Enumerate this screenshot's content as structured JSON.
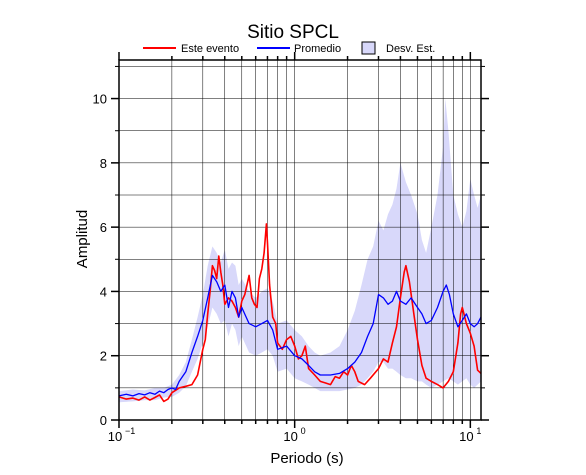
{
  "chart_data": {
    "type": "line",
    "title": "Sitio SPCL",
    "xlabel": "Periodo (s)",
    "ylabel": "Amplitud",
    "x_scale": "log",
    "xlim": [
      0.1,
      11.5
    ],
    "ylim": [
      0,
      11.2
    ],
    "grid": true,
    "legend_position": "top",
    "x_ticks": [
      {
        "base": "10",
        "exp": "−1"
      },
      {
        "base": "10",
        "exp": "0"
      },
      {
        "base": "10",
        "exp": "1"
      }
    ],
    "y_ticks": [
      "0",
      "2",
      "4",
      "6",
      "8",
      "10"
    ],
    "y_tick_values": [
      0,
      2,
      4,
      6,
      8,
      10
    ],
    "series": [
      {
        "name": "Este evento",
        "color": "#ff0000",
        "points": [
          [
            0.1,
            0.72
          ],
          [
            0.11,
            0.65
          ],
          [
            0.12,
            0.68
          ],
          [
            0.13,
            0.62
          ],
          [
            0.14,
            0.72
          ],
          [
            0.15,
            0.62
          ],
          [
            0.16,
            0.7
          ],
          [
            0.17,
            0.78
          ],
          [
            0.18,
            0.58
          ],
          [
            0.19,
            0.65
          ],
          [
            0.2,
            0.85
          ],
          [
            0.22,
            1.0
          ],
          [
            0.24,
            1.05
          ],
          [
            0.26,
            1.1
          ],
          [
            0.28,
            1.4
          ],
          [
            0.3,
            2.2
          ],
          [
            0.31,
            2.5
          ],
          [
            0.32,
            3.3
          ],
          [
            0.33,
            4.0
          ],
          [
            0.34,
            4.8
          ],
          [
            0.35,
            4.65
          ],
          [
            0.36,
            4.4
          ],
          [
            0.37,
            5.1
          ],
          [
            0.38,
            4.6
          ],
          [
            0.39,
            4.2
          ],
          [
            0.4,
            3.6
          ],
          [
            0.42,
            3.8
          ],
          [
            0.44,
            3.7
          ],
          [
            0.46,
            3.5
          ],
          [
            0.48,
            3.2
          ],
          [
            0.5,
            3.7
          ],
          [
            0.52,
            3.9
          ],
          [
            0.55,
            4.5
          ],
          [
            0.57,
            3.8
          ],
          [
            0.59,
            3.6
          ],
          [
            0.61,
            3.5
          ],
          [
            0.63,
            4.4
          ],
          [
            0.65,
            4.7
          ],
          [
            0.67,
            5.2
          ],
          [
            0.69,
            6.1
          ],
          [
            0.7,
            5.5
          ],
          [
            0.72,
            4.2
          ],
          [
            0.75,
            3.2
          ],
          [
            0.78,
            3.0
          ],
          [
            0.8,
            2.4
          ],
          [
            0.85,
            2.2
          ],
          [
            0.9,
            2.5
          ],
          [
            0.95,
            2.6
          ],
          [
            1.0,
            2.3
          ],
          [
            1.05,
            1.9
          ],
          [
            1.1,
            2.0
          ],
          [
            1.15,
            2.3
          ],
          [
            1.2,
            1.6
          ],
          [
            1.3,
            1.4
          ],
          [
            1.4,
            1.2
          ],
          [
            1.5,
            1.15
          ],
          [
            1.6,
            1.1
          ],
          [
            1.7,
            1.35
          ],
          [
            1.8,
            1.3
          ],
          [
            1.9,
            1.5
          ],
          [
            2.0,
            1.4
          ],
          [
            2.1,
            1.7
          ],
          [
            2.2,
            1.5
          ],
          [
            2.3,
            1.2
          ],
          [
            2.5,
            1.1
          ],
          [
            2.7,
            1.3
          ],
          [
            3.0,
            1.6
          ],
          [
            3.2,
            1.9
          ],
          [
            3.4,
            1.8
          ],
          [
            3.6,
            2.4
          ],
          [
            3.8,
            2.9
          ],
          [
            4.0,
            3.8
          ],
          [
            4.2,
            4.6
          ],
          [
            4.3,
            4.8
          ],
          [
            4.5,
            4.3
          ],
          [
            4.8,
            3.2
          ],
          [
            5.0,
            2.5
          ],
          [
            5.3,
            1.7
          ],
          [
            5.6,
            1.3
          ],
          [
            6.0,
            1.2
          ],
          [
            6.5,
            1.1
          ],
          [
            7.0,
            1.0
          ],
          [
            7.5,
            1.2
          ],
          [
            8.0,
            1.5
          ],
          [
            8.5,
            2.4
          ],
          [
            8.8,
            3.3
          ],
          [
            9.0,
            3.5
          ],
          [
            9.5,
            3.0
          ],
          [
            10.0,
            2.7
          ],
          [
            10.5,
            2.3
          ],
          [
            11.0,
            1.55
          ],
          [
            11.5,
            1.45
          ]
        ]
      },
      {
        "name": "Promedio",
        "color": "#0000ff",
        "points": [
          [
            0.1,
            0.75
          ],
          [
            0.11,
            0.8
          ],
          [
            0.12,
            0.75
          ],
          [
            0.13,
            0.82
          ],
          [
            0.14,
            0.78
          ],
          [
            0.15,
            0.85
          ],
          [
            0.16,
            0.8
          ],
          [
            0.17,
            0.9
          ],
          [
            0.18,
            0.85
          ],
          [
            0.19,
            0.95
          ],
          [
            0.2,
            1.0
          ],
          [
            0.21,
            0.95
          ],
          [
            0.22,
            1.2
          ],
          [
            0.24,
            1.5
          ],
          [
            0.26,
            2.1
          ],
          [
            0.28,
            2.6
          ],
          [
            0.3,
            3.1
          ],
          [
            0.32,
            3.8
          ],
          [
            0.34,
            4.5
          ],
          [
            0.36,
            4.3
          ],
          [
            0.38,
            4.0
          ],
          [
            0.4,
            4.2
          ],
          [
            0.42,
            3.5
          ],
          [
            0.44,
            4.0
          ],
          [
            0.46,
            3.8
          ],
          [
            0.48,
            3.2
          ],
          [
            0.5,
            3.5
          ],
          [
            0.55,
            3.0
          ],
          [
            0.6,
            2.9
          ],
          [
            0.65,
            3.0
          ],
          [
            0.7,
            3.1
          ],
          [
            0.75,
            2.8
          ],
          [
            0.8,
            2.2
          ],
          [
            0.9,
            2.3
          ],
          [
            1.0,
            2.0
          ],
          [
            1.1,
            1.9
          ],
          [
            1.2,
            1.7
          ],
          [
            1.3,
            1.5
          ],
          [
            1.4,
            1.4
          ],
          [
            1.6,
            1.4
          ],
          [
            1.8,
            1.45
          ],
          [
            2.0,
            1.6
          ],
          [
            2.2,
            1.8
          ],
          [
            2.4,
            2.1
          ],
          [
            2.6,
            2.6
          ],
          [
            2.8,
            3.0
          ],
          [
            3.0,
            3.9
          ],
          [
            3.2,
            3.8
          ],
          [
            3.4,
            3.6
          ],
          [
            3.6,
            3.7
          ],
          [
            3.8,
            4.0
          ],
          [
            4.0,
            3.7
          ],
          [
            4.3,
            3.6
          ],
          [
            4.6,
            3.8
          ],
          [
            5.0,
            3.5
          ],
          [
            5.3,
            3.3
          ],
          [
            5.6,
            3.0
          ],
          [
            6.0,
            3.1
          ],
          [
            6.5,
            3.5
          ],
          [
            7.0,
            4.0
          ],
          [
            7.3,
            4.2
          ],
          [
            7.6,
            3.9
          ],
          [
            8.0,
            3.3
          ],
          [
            8.5,
            2.9
          ],
          [
            9.0,
            3.1
          ],
          [
            9.5,
            3.3
          ],
          [
            10.0,
            3.0
          ],
          [
            10.5,
            2.9
          ],
          [
            11.0,
            3.0
          ],
          [
            11.5,
            3.2
          ]
        ]
      },
      {
        "name": "Desv. Est.",
        "color": "#d8d8fa",
        "outline": "#000000",
        "type": "band",
        "upper": [
          [
            0.1,
            0.9
          ],
          [
            0.12,
            0.95
          ],
          [
            0.14,
            0.92
          ],
          [
            0.16,
            1.0
          ],
          [
            0.18,
            1.0
          ],
          [
            0.2,
            1.1
          ],
          [
            0.22,
            1.4
          ],
          [
            0.24,
            1.8
          ],
          [
            0.26,
            2.5
          ],
          [
            0.28,
            3.2
          ],
          [
            0.3,
            3.9
          ],
          [
            0.32,
            4.8
          ],
          [
            0.34,
            5.4
          ],
          [
            0.36,
            5.2
          ],
          [
            0.38,
            4.9
          ],
          [
            0.4,
            5.3
          ],
          [
            0.42,
            4.7
          ],
          [
            0.44,
            4.9
          ],
          [
            0.46,
            4.8
          ],
          [
            0.48,
            4.2
          ],
          [
            0.5,
            4.4
          ],
          [
            0.55,
            4.0
          ],
          [
            0.6,
            3.8
          ],
          [
            0.65,
            4.0
          ],
          [
            0.7,
            4.1
          ],
          [
            0.75,
            3.7
          ],
          [
            0.8,
            3.0
          ],
          [
            0.9,
            3.1
          ],
          [
            1.0,
            2.8
          ],
          [
            1.1,
            2.6
          ],
          [
            1.2,
            2.3
          ],
          [
            1.3,
            2.1
          ],
          [
            1.4,
            2.0
          ],
          [
            1.6,
            2.1
          ],
          [
            1.8,
            2.3
          ],
          [
            2.0,
            2.8
          ],
          [
            2.2,
            3.4
          ],
          [
            2.4,
            4.2
          ],
          [
            2.6,
            5.0
          ],
          [
            2.8,
            5.4
          ],
          [
            3.0,
            6.2
          ],
          [
            3.2,
            5.9
          ],
          [
            3.4,
            6.4
          ],
          [
            3.6,
            6.7
          ],
          [
            3.8,
            7.2
          ],
          [
            4.0,
            8.0
          ],
          [
            4.3,
            7.4
          ],
          [
            4.6,
            7.0
          ],
          [
            5.0,
            6.4
          ],
          [
            5.3,
            5.6
          ],
          [
            5.6,
            5.2
          ],
          [
            6.0,
            6.0
          ],
          [
            6.5,
            7.0
          ],
          [
            7.0,
            8.5
          ],
          [
            7.2,
            10.0
          ],
          [
            7.5,
            9.0
          ],
          [
            8.0,
            7.0
          ],
          [
            8.5,
            6.4
          ],
          [
            9.0,
            6.0
          ],
          [
            9.5,
            6.5
          ],
          [
            10.0,
            7.5
          ],
          [
            10.5,
            7.0
          ],
          [
            11.0,
            6.6
          ],
          [
            11.5,
            7.0
          ]
        ],
        "lower": [
          [
            0.1,
            0.55
          ],
          [
            0.12,
            0.58
          ],
          [
            0.14,
            0.62
          ],
          [
            0.16,
            0.62
          ],
          [
            0.18,
            0.7
          ],
          [
            0.2,
            0.72
          ],
          [
            0.22,
            0.85
          ],
          [
            0.24,
            1.05
          ],
          [
            0.26,
            1.5
          ],
          [
            0.28,
            1.9
          ],
          [
            0.3,
            2.4
          ],
          [
            0.32,
            2.9
          ],
          [
            0.34,
            3.5
          ],
          [
            0.36,
            3.3
          ],
          [
            0.38,
            3.0
          ],
          [
            0.4,
            3.1
          ],
          [
            0.42,
            2.6
          ],
          [
            0.44,
            3.0
          ],
          [
            0.46,
            2.8
          ],
          [
            0.48,
            2.3
          ],
          [
            0.5,
            2.6
          ],
          [
            0.55,
            2.1
          ],
          [
            0.6,
            2.0
          ],
          [
            0.65,
            2.1
          ],
          [
            0.7,
            2.2
          ],
          [
            0.75,
            2.0
          ],
          [
            0.8,
            1.5
          ],
          [
            0.9,
            1.6
          ],
          [
            1.0,
            1.3
          ],
          [
            1.1,
            1.2
          ],
          [
            1.2,
            1.1
          ],
          [
            1.3,
            1.0
          ],
          [
            1.4,
            0.9
          ],
          [
            1.6,
            0.9
          ],
          [
            1.8,
            0.9
          ],
          [
            2.0,
            0.95
          ],
          [
            2.2,
            1.0
          ],
          [
            2.4,
            1.1
          ],
          [
            2.6,
            1.3
          ],
          [
            2.8,
            1.5
          ],
          [
            3.0,
            1.8
          ],
          [
            3.2,
            1.8
          ],
          [
            3.4,
            1.6
          ],
          [
            3.6,
            1.6
          ],
          [
            3.8,
            1.5
          ],
          [
            4.0,
            1.4
          ],
          [
            4.3,
            1.3
          ],
          [
            4.6,
            1.3
          ],
          [
            5.0,
            1.2
          ],
          [
            5.3,
            1.2
          ],
          [
            5.6,
            1.1
          ],
          [
            6.0,
            1.0
          ],
          [
            6.5,
            1.1
          ],
          [
            7.0,
            1.2
          ],
          [
            7.5,
            1.3
          ],
          [
            8.0,
            1.2
          ],
          [
            8.5,
            1.1
          ],
          [
            9.0,
            1.2
          ],
          [
            9.5,
            1.3
          ],
          [
            10.0,
            1.1
          ],
          [
            10.5,
            1.0
          ],
          [
            11.0,
            1.1
          ],
          [
            11.5,
            1.2
          ]
        ]
      }
    ]
  }
}
